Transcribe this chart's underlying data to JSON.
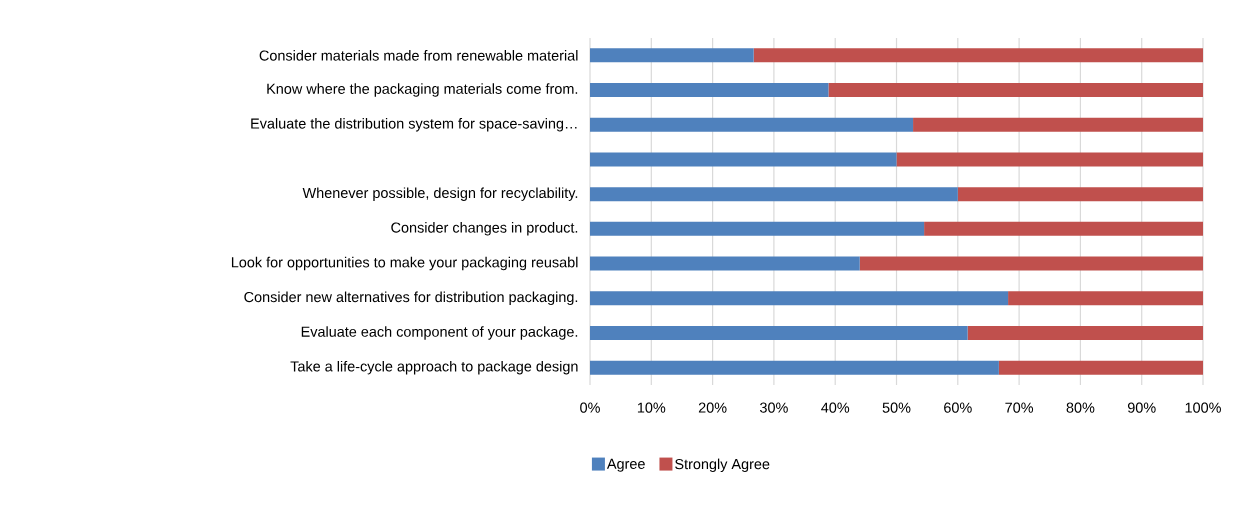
{
  "chart_data": {
    "type": "bar",
    "orientation": "horizontal",
    "stacked": true,
    "categories": [
      "Consider materials made from renewable material",
      "Know where the packaging materials come from.",
      "Evaluate the distribution system for space-saving…",
      null,
      "Whenever possible, design for recyclability.",
      "Consider changes in product.",
      "Look for opportunities to make your packaging reusabl",
      "Consider new alternatives for distribution packaging.",
      "Evaluate each component of your package.",
      "Take a life-cycle approach to package design"
    ],
    "series": [
      {
        "name": "Agree",
        "color": "#4f81bd",
        "values": [
          26.7,
          38.9,
          52.7,
          50.0,
          60.0,
          54.5,
          44.0,
          68.2,
          61.6,
          66.7
        ]
      },
      {
        "name": "Strongly Agree",
        "color": "#c0504d",
        "values": [
          73.3,
          61.1,
          47.3,
          50.0,
          40.0,
          45.5,
          56.0,
          31.8,
          38.4,
          33.3
        ]
      }
    ],
    "xlim": [
      0,
      100
    ],
    "xticks": [
      {
        "value": 0,
        "label": "0%"
      },
      {
        "value": 10,
        "label": "10%"
      },
      {
        "value": 20,
        "label": "20%"
      },
      {
        "value": 30,
        "label": "30%"
      },
      {
        "value": 40,
        "label": "40%"
      },
      {
        "value": 50,
        "label": "50%"
      },
      {
        "value": 60,
        "label": "60%"
      },
      {
        "value": 70,
        "label": "70%"
      },
      {
        "value": 80,
        "label": "80%"
      },
      {
        "value": 90,
        "label": "90%"
      },
      {
        "value": 100,
        "label": "100%"
      }
    ],
    "grid": "x",
    "legend": "bottom"
  }
}
